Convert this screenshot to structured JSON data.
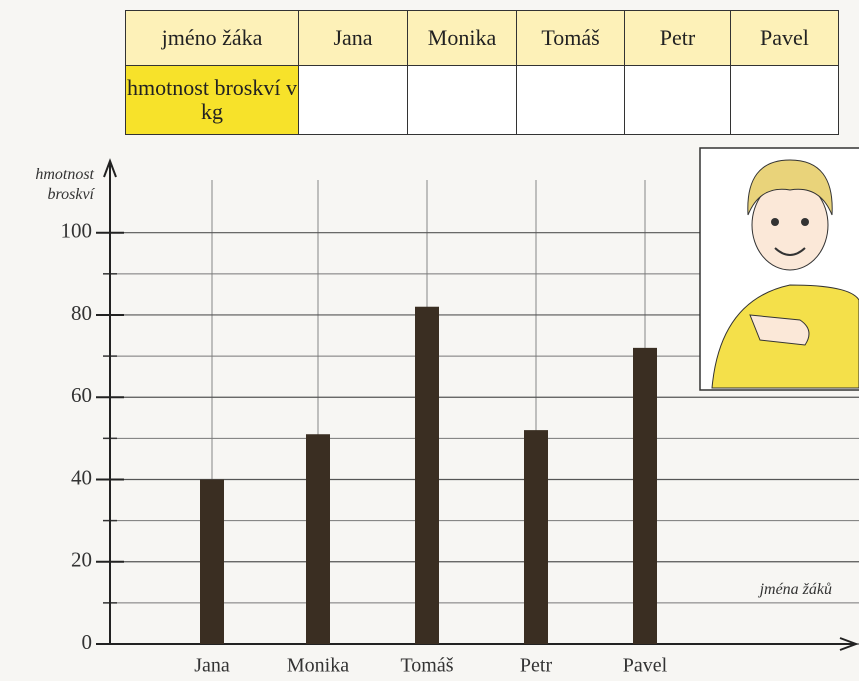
{
  "table": {
    "header": [
      "jméno žáka",
      "Jana",
      "Monika",
      "Tomáš",
      "Petr",
      "Pavel"
    ],
    "row_label": "hmotnost broskví v kg"
  },
  "chart_data": {
    "type": "bar",
    "y_label": "hmotnost broskví",
    "x_label": "jména žáků",
    "categories": [
      "Jana",
      "Monika",
      "Tomáš",
      "Petr",
      "Pavel"
    ],
    "values": [
      40,
      51,
      82,
      52,
      72
    ],
    "color": "#3a2e22",
    "ylim": [
      0,
      115
    ],
    "yticks": [
      0,
      20,
      40,
      60,
      80,
      100
    ],
    "minor_yticks": [
      10,
      30,
      50,
      70,
      90
    ],
    "grid": true
  }
}
